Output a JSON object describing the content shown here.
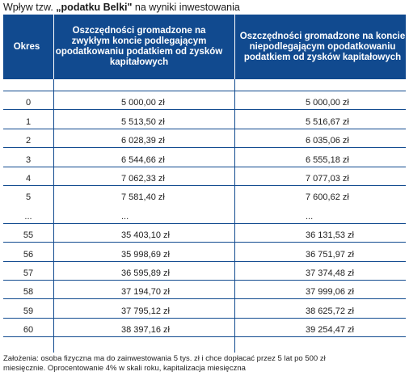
{
  "title": {
    "prefix": "Wpływ tzw. ",
    "bold": "„podatku Belki\"",
    "suffix": " na wyniki inwestowania"
  },
  "columns": [
    "Okres",
    "Oszczędności gromadzone na zwykłym koncie podlegającym opodatkowaniu podatkiem od zysków kapitałowych",
    "Oszczędności gromadzone na koncie niepodlegającym opodatkowaniu podatkiem od zysków kapitałowych"
  ],
  "rows": [
    {
      "period": "",
      "a": "",
      "b": ""
    },
    {
      "period": "0",
      "a": "5 000,00 zł",
      "b": "5 000,00 zł"
    },
    {
      "period": "1",
      "a": "5 513,50 zł",
      "b": "5 516,67 zł"
    },
    {
      "period": "2",
      "a": "6 028,39 zł",
      "b": "6 035,06 zł"
    },
    {
      "period": "3",
      "a": "6 544,66 zł",
      "b": "6 555,18 zł"
    },
    {
      "period": "4",
      "a": "7 062,33 zł",
      "b": "7 077,03 zł"
    },
    {
      "period": "5",
      "a": "7 581,40 zł",
      "b": "7 600,62 zł"
    },
    {
      "period": "...",
      "a": "...",
      "b": "..."
    },
    {
      "period": "55",
      "a": "35 403,10 zł",
      "b": "36 131,53 zł"
    },
    {
      "period": "56",
      "a": "35 998,69 zł",
      "b": "36 751,97 zł"
    },
    {
      "period": "57",
      "a": "36 595,89 zł",
      "b": "37 374,48 zł"
    },
    {
      "period": "58",
      "a": "37 194,70 zł",
      "b": "37 999,06 zł"
    },
    {
      "period": "59",
      "a": "37 795,12 zł",
      "b": "38 625,72 zł"
    },
    {
      "period": "60",
      "a": "38 397,16 zł",
      "b": "39 254,47 zł"
    }
  ],
  "footer": {
    "line1": "Założenia: osoba fizyczna ma do zainwestowania 5 tys. zł i chce dopłacać przez 5 lat po 500 zł",
    "line2": "miesięcznie. Oprocentowanie 4% w skali roku, kapitalizacja miesięczna"
  },
  "colors": {
    "header_bg": "#114a8f",
    "grid": "#114a8f"
  }
}
